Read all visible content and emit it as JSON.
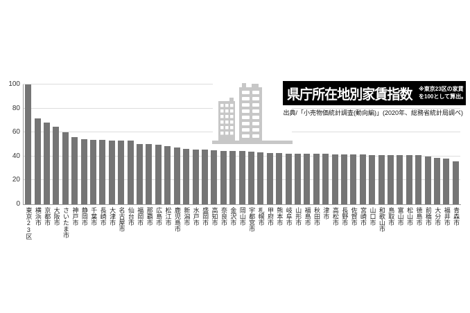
{
  "header": {
    "title": "県庁所在地別家賃指数",
    "note_line1": "※東京23区の家賃",
    "note_line2": "を100として算出。",
    "source": "出典/「小売物価統計調査(動向編)」(2020年、総務省統計局調べ)"
  },
  "colors": {
    "bar": "#757575",
    "grid": "#dcdcdc",
    "axis": "#9a9a9a",
    "title_bg": "#000000",
    "title_fg": "#ffffff",
    "building": "#c7c7c7"
  },
  "chart_data": {
    "type": "bar",
    "title": "県庁所在地別家賃指数",
    "note": "※東京23区の家賃を100として算出。",
    "source": "出典/「小売物価統計調査(動向編)」(2020年、総務省統計局調べ)",
    "ylabel": "",
    "xlabel": "",
    "ylim": [
      0,
      100
    ],
    "yticks": [
      0,
      20,
      40,
      60,
      80,
      100
    ],
    "grid": true,
    "legend": false,
    "categories": [
      "東京23区",
      "横浜市",
      "京都市",
      "大阪市",
      "さいたま市",
      "神戸市",
      "静岡市",
      "千葉市",
      "長崎市",
      "大津市",
      "名古屋市",
      "仙台市",
      "福岡市",
      "那覇市",
      "広島市",
      "松江市",
      "鹿児島市",
      "新潟市",
      "水戸市",
      "盛岡市",
      "高知市",
      "奈良市",
      "金沢市",
      "岡山市",
      "宇都宮市",
      "札幌市",
      "甲府市",
      "熊本市",
      "岐阜市",
      "山形市",
      "福島市",
      "秋田市",
      "津市",
      "高松市",
      "長野市",
      "佐賀市",
      "宮崎市",
      "山口市",
      "和歌山市",
      "鳥取市",
      "富山市",
      "松山市",
      "徳島市",
      "前橋市",
      "大分市",
      "福井市",
      "青森市"
    ],
    "values": [
      100,
      72,
      68.5,
      65,
      60,
      56,
      54.5,
      54,
      54,
      53.5,
      53.5,
      53,
      50.5,
      50.5,
      50,
      48.5,
      47.5,
      46.5,
      46,
      45.5,
      45,
      44.5,
      44.5,
      44.5,
      44,
      43.5,
      43,
      43,
      42.5,
      42,
      42,
      42,
      42,
      41.5,
      41.5,
      41.5,
      41.5,
      41,
      41,
      41,
      41,
      41,
      41,
      40,
      39,
      38.5,
      36
    ]
  }
}
